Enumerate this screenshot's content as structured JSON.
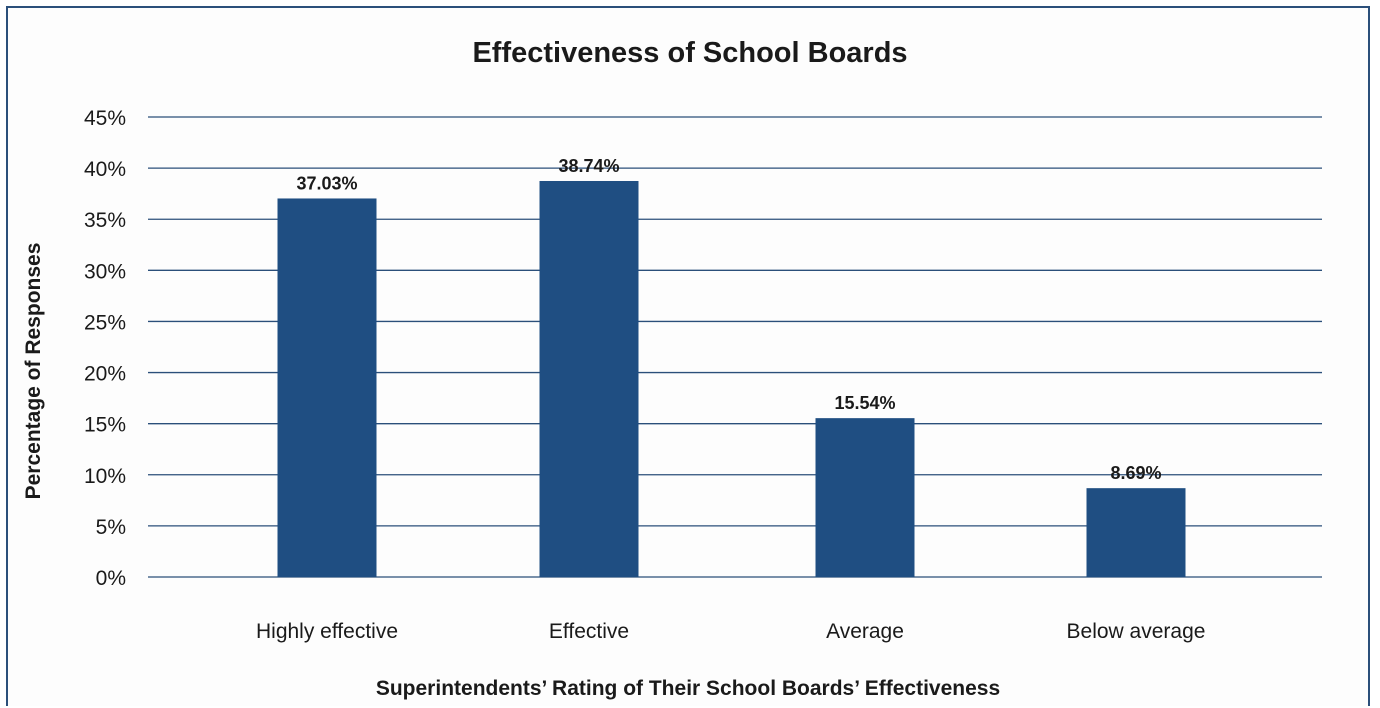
{
  "chart_data": {
    "type": "bar",
    "title": "Effectiveness of School Boards",
    "xlabel": "Superintendents’ Rating of Their School Boards’ Effectiveness",
    "ylabel": "Percentage of Responses",
    "categories": [
      "Highly effective",
      "Effective",
      "Average",
      "Below average"
    ],
    "values": [
      37.03,
      38.74,
      15.54,
      8.69
    ],
    "data_labels": [
      "37.03%",
      "38.74%",
      "15.54%",
      "8.69%"
    ],
    "ylim": [
      0,
      45
    ],
    "yticks": [
      0,
      5,
      10,
      15,
      20,
      25,
      30,
      35,
      40,
      45
    ],
    "ytick_labels": [
      "0%",
      "5%",
      "10%",
      "15%",
      "20%",
      "25%",
      "30%",
      "35%",
      "40%",
      "45%"
    ],
    "grid": true,
    "legend": "none",
    "colors": {
      "bar": "#1f4e82",
      "grid": "#2b4f7a",
      "frame": "#2b4f7a",
      "text": "#1a1a1a"
    }
  }
}
